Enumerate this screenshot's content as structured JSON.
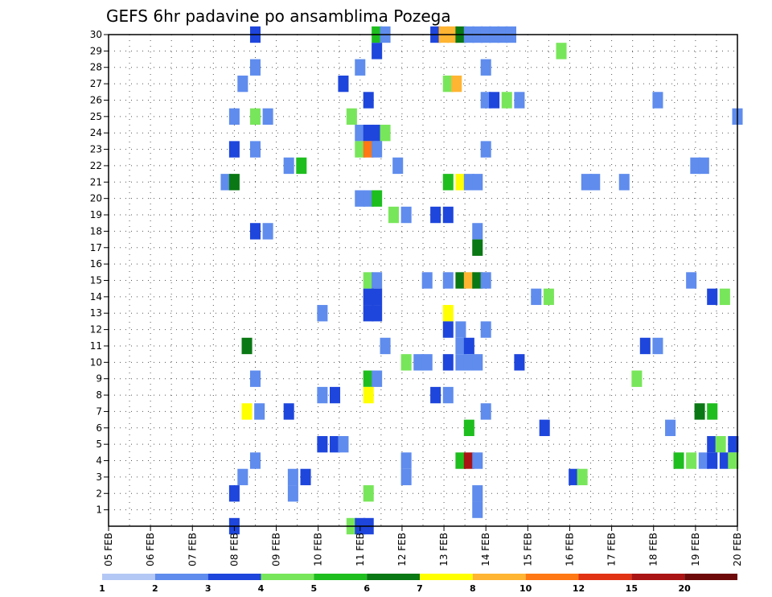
{
  "chart_data": {
    "type": "heatmap",
    "title": "GEFS 6hr padavine po ansamblima Pozega",
    "x_labels": [
      "05 FEB",
      "06 FEB",
      "07 FEB",
      "08 FEB",
      "09 FEB",
      "10 FEB",
      "11 FEB",
      "12 FEB",
      "13 FEB",
      "14 FEB",
      "15 FEB",
      "16 FEB",
      "17 FEB",
      "18 FEB",
      "19 FEB",
      "20 FEB"
    ],
    "y_labels": [
      "1",
      "2",
      "3",
      "4",
      "5",
      "6",
      "7",
      "8",
      "9",
      "10",
      "11",
      "12",
      "13",
      "14",
      "15",
      "16",
      "17",
      "18",
      "19",
      "20",
      "21",
      "22",
      "23",
      "24",
      "25",
      "26",
      "27",
      "28",
      "29",
      "30"
    ],
    "x_range": [
      "05 FEB",
      "20 FEB"
    ],
    "y_range": [
      0,
      30
    ],
    "grid": true,
    "colorbar": {
      "labels": [
        "1",
        "2",
        "3",
        "4",
        "5",
        "6",
        "7",
        "8",
        "10",
        "12",
        "15",
        "20"
      ],
      "colors": [
        "#b4c8f5",
        "#5f8ced",
        "#1e46dc",
        "#78e65a",
        "#1ebe1e",
        "#0a7814",
        "#ffff00",
        "#ffb432",
        "#ff7814",
        "#e13214",
        "#aa1414",
        "#6e0a0a"
      ]
    },
    "cells": [
      [
        30,
        8.5,
        2
      ],
      [
        30,
        11.4,
        4
      ],
      [
        30,
        11.6,
        1
      ],
      [
        30,
        12.8,
        2
      ],
      [
        30,
        13.0,
        7
      ],
      [
        30,
        13.2,
        7
      ],
      [
        30,
        13.4,
        5
      ],
      [
        30,
        13.6,
        1
      ],
      [
        30,
        13.8,
        1
      ],
      [
        30,
        14.0,
        1
      ],
      [
        30,
        14.2,
        1
      ],
      [
        30,
        14.4,
        1
      ],
      [
        30,
        14.6,
        1
      ],
      [
        29,
        11.4,
        2
      ],
      [
        29,
        15.8,
        3
      ],
      [
        28,
        8.5,
        1
      ],
      [
        28,
        11.0,
        1
      ],
      [
        28,
        14.0,
        1
      ],
      [
        27,
        8.2,
        1
      ],
      [
        27,
        10.6,
        2
      ],
      [
        27,
        13.1,
        3
      ],
      [
        27,
        13.3,
        7
      ],
      [
        26,
        11.2,
        2
      ],
      [
        26,
        14.0,
        1
      ],
      [
        26,
        14.2,
        2
      ],
      [
        26,
        14.5,
        3
      ],
      [
        26,
        14.8,
        1
      ],
      [
        26,
        18.1,
        1
      ],
      [
        25,
        8.0,
        1
      ],
      [
        25,
        8.5,
        3
      ],
      [
        25,
        8.8,
        1
      ],
      [
        25,
        10.8,
        3
      ],
      [
        25,
        20.0,
        1
      ],
      [
        24,
        11.0,
        1
      ],
      [
        24,
        11.2,
        2
      ],
      [
        24,
        11.4,
        2
      ],
      [
        24,
        11.6,
        3
      ],
      [
        23,
        8.0,
        2
      ],
      [
        23,
        8.5,
        1
      ],
      [
        23,
        11.0,
        3
      ],
      [
        23,
        11.2,
        8
      ],
      [
        23,
        11.4,
        1
      ],
      [
        23,
        14.0,
        1
      ],
      [
        22,
        9.3,
        1
      ],
      [
        22,
        9.6,
        4
      ],
      [
        22,
        11.9,
        1
      ],
      [
        22,
        19.0,
        1
      ],
      [
        22,
        19.2,
        1
      ],
      [
        21,
        7.8,
        1
      ],
      [
        21,
        8.0,
        5
      ],
      [
        21,
        13.1,
        4
      ],
      [
        21,
        13.4,
        6
      ],
      [
        21,
        13.6,
        1
      ],
      [
        21,
        13.8,
        1
      ],
      [
        21,
        16.4,
        1
      ],
      [
        21,
        16.6,
        1
      ],
      [
        21,
        17.3,
        1
      ],
      [
        20,
        11.0,
        1
      ],
      [
        20,
        11.2,
        1
      ],
      [
        20,
        11.4,
        4
      ],
      [
        19,
        11.8,
        3
      ],
      [
        19,
        12.1,
        1
      ],
      [
        19,
        12.8,
        2
      ],
      [
        19,
        13.1,
        2
      ],
      [
        18,
        8.5,
        2
      ],
      [
        18,
        8.8,
        1
      ],
      [
        18,
        13.8,
        1
      ],
      [
        17,
        13.8,
        5
      ],
      [
        15,
        11.2,
        3
      ],
      [
        15,
        11.4,
        1
      ],
      [
        15,
        12.6,
        1
      ],
      [
        15,
        13.1,
        1
      ],
      [
        15,
        13.4,
        5
      ],
      [
        15,
        13.6,
        7
      ],
      [
        15,
        13.8,
        5
      ],
      [
        15,
        14.0,
        1
      ],
      [
        15,
        18.9,
        1
      ],
      [
        14,
        11.2,
        2
      ],
      [
        14,
        11.4,
        2
      ],
      [
        14,
        15.2,
        1
      ],
      [
        14,
        15.5,
        3
      ],
      [
        14,
        19.4,
        2
      ],
      [
        14,
        19.7,
        3
      ],
      [
        13,
        10.1,
        1
      ],
      [
        13,
        13.1,
        6
      ],
      [
        13,
        11.2,
        2
      ],
      [
        13,
        11.4,
        2
      ],
      [
        12,
        13.1,
        2
      ],
      [
        12,
        13.4,
        1
      ],
      [
        12,
        14.0,
        1
      ],
      [
        11,
        8.3,
        5
      ],
      [
        11,
        11.6,
        1
      ],
      [
        11,
        13.4,
        1
      ],
      [
        11,
        13.6,
        2
      ],
      [
        11,
        17.8,
        2
      ],
      [
        11,
        18.1,
        1
      ],
      [
        10,
        12.1,
        3
      ],
      [
        10,
        12.4,
        1
      ],
      [
        10,
        12.6,
        1
      ],
      [
        10,
        13.1,
        2
      ],
      [
        10,
        13.4,
        1
      ],
      [
        10,
        13.6,
        1
      ],
      [
        10,
        13.8,
        1
      ],
      [
        10,
        14.8,
        2
      ],
      [
        9,
        8.5,
        1
      ],
      [
        9,
        11.2,
        4
      ],
      [
        9,
        11.4,
        1
      ],
      [
        9,
        17.6,
        3
      ],
      [
        8,
        10.1,
        1
      ],
      [
        8,
        10.4,
        2
      ],
      [
        8,
        11.2,
        6
      ],
      [
        8,
        12.8,
        2
      ],
      [
        8,
        13.1,
        1
      ],
      [
        7,
        8.3,
        6
      ],
      [
        7,
        8.6,
        1
      ],
      [
        7,
        9.3,
        2
      ],
      [
        7,
        14.0,
        1
      ],
      [
        7,
        19.1,
        5
      ],
      [
        7,
        19.4,
        4
      ],
      [
        6,
        13.6,
        4
      ],
      [
        6,
        15.4,
        2
      ],
      [
        6,
        18.4,
        1
      ],
      [
        5,
        10.1,
        2
      ],
      [
        5,
        10.4,
        2
      ],
      [
        5,
        10.6,
        1
      ],
      [
        5,
        19.4,
        2
      ],
      [
        5,
        19.6,
        3
      ],
      [
        5,
        19.9,
        2
      ],
      [
        4,
        8.5,
        1
      ],
      [
        4,
        12.1,
        1
      ],
      [
        4,
        13.4,
        4
      ],
      [
        4,
        13.6,
        10
      ],
      [
        4,
        13.8,
        1
      ],
      [
        4,
        18.6,
        4
      ],
      [
        4,
        18.9,
        3
      ],
      [
        4,
        19.2,
        1
      ],
      [
        4,
        19.4,
        2
      ],
      [
        4,
        19.7,
        2
      ],
      [
        4,
        19.9,
        3
      ],
      [
        3,
        8.2,
        1
      ],
      [
        3,
        9.4,
        1
      ],
      [
        3,
        9.7,
        2
      ],
      [
        3,
        12.1,
        1
      ],
      [
        3,
        16.1,
        2
      ],
      [
        3,
        16.3,
        3
      ],
      [
        2,
        8.0,
        2
      ],
      [
        2,
        9.4,
        1
      ],
      [
        2,
        11.2,
        3
      ],
      [
        2,
        13.8,
        1
      ],
      [
        1,
        13.8,
        1
      ],
      [
        0,
        8.0,
        2
      ],
      [
        0,
        10.8,
        3
      ],
      [
        0,
        11.0,
        2
      ],
      [
        0,
        11.2,
        2
      ]
    ]
  }
}
